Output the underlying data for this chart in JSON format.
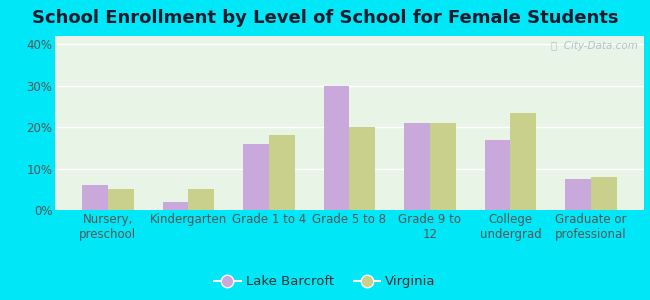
{
  "title": "School Enrollment by Level of School for Female Students",
  "categories": [
    "Nursery,\npreschool",
    "Kindergarten",
    "Grade 1 to 4",
    "Grade 5 to 8",
    "Grade 9 to\n12",
    "College\nundergrad",
    "Graduate or\nprofessional"
  ],
  "lake_barcroft": [
    6,
    2,
    16,
    30,
    21,
    17,
    7.5
  ],
  "virginia": [
    5,
    5,
    18,
    20,
    21,
    23.5,
    8
  ],
  "bar_color_lb": "#c9a8dc",
  "bar_color_va": "#c8d08c",
  "legend_lb": "Lake Barcroft",
  "legend_va": "Virginia",
  "ylim": [
    0,
    42
  ],
  "yticks": [
    0,
    10,
    20,
    30,
    40
  ],
  "ytick_labels": [
    "0%",
    "10%",
    "20%",
    "30%",
    "40%"
  ],
  "background_outer": "#00e8f8",
  "background_inner": "#e8f5e6",
  "title_fontsize": 13,
  "tick_fontsize": 8.5,
  "legend_fontsize": 9.5
}
